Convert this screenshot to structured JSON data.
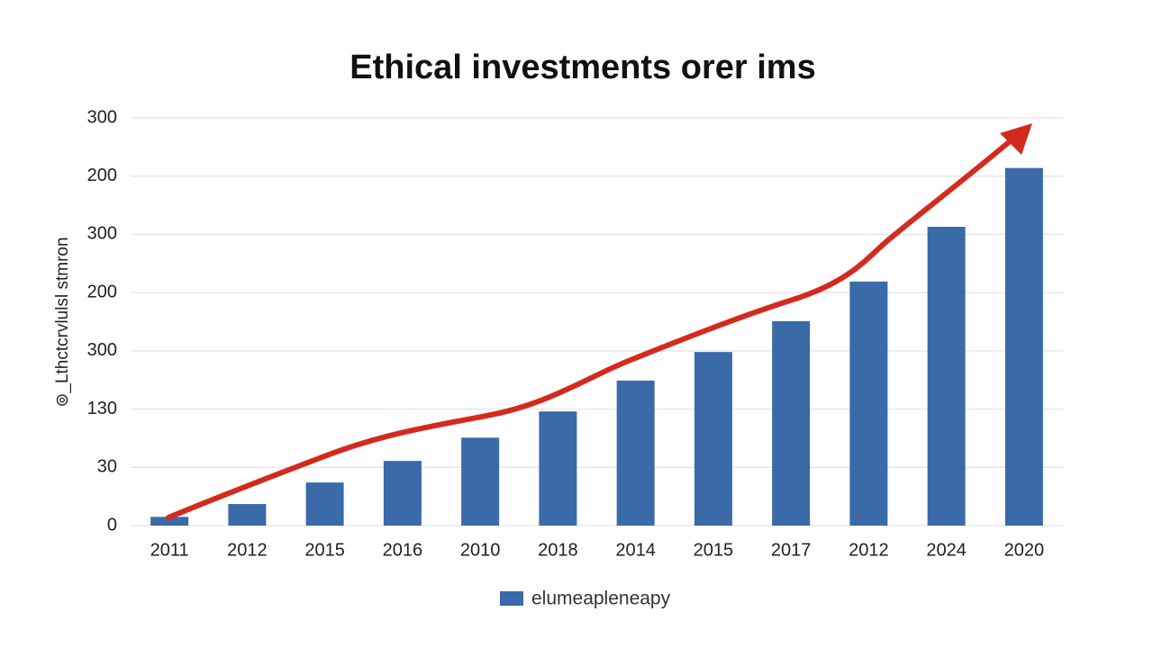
{
  "chart_data": {
    "type": "bar",
    "title": "Ethical investments orer ims",
    "y_label": "⊚_Lthctcrvlulsl stmron",
    "categories": [
      "2011",
      "2012",
      "2015",
      "2016",
      "2010",
      "2018",
      "2014",
      "2015",
      "2017",
      "2012",
      "2024",
      "2020"
    ],
    "series": [
      {
        "name": "elumeaplenеapy",
        "color": "#3a6aa8",
        "values": [
          0.15,
          0.37,
          0.74,
          1.11,
          1.51,
          1.96,
          2.49,
          2.98,
          3.51,
          4.19,
          5.13,
          6.14
        ]
      }
    ],
    "ylim": [
      0,
      7
    ],
    "yticks": [
      {
        "value": 0,
        "label": "0"
      },
      {
        "value": 1,
        "label": "30"
      },
      {
        "value": 2,
        "label": "130"
      },
      {
        "value": 3,
        "label": "300"
      },
      {
        "value": 4,
        "label": "200"
      },
      {
        "value": 5,
        "label": "300"
      },
      {
        "value": 6,
        "label": "200"
      },
      {
        "value": 7,
        "label": "300"
      }
    ],
    "grid": true,
    "legend": "bottom"
  }
}
